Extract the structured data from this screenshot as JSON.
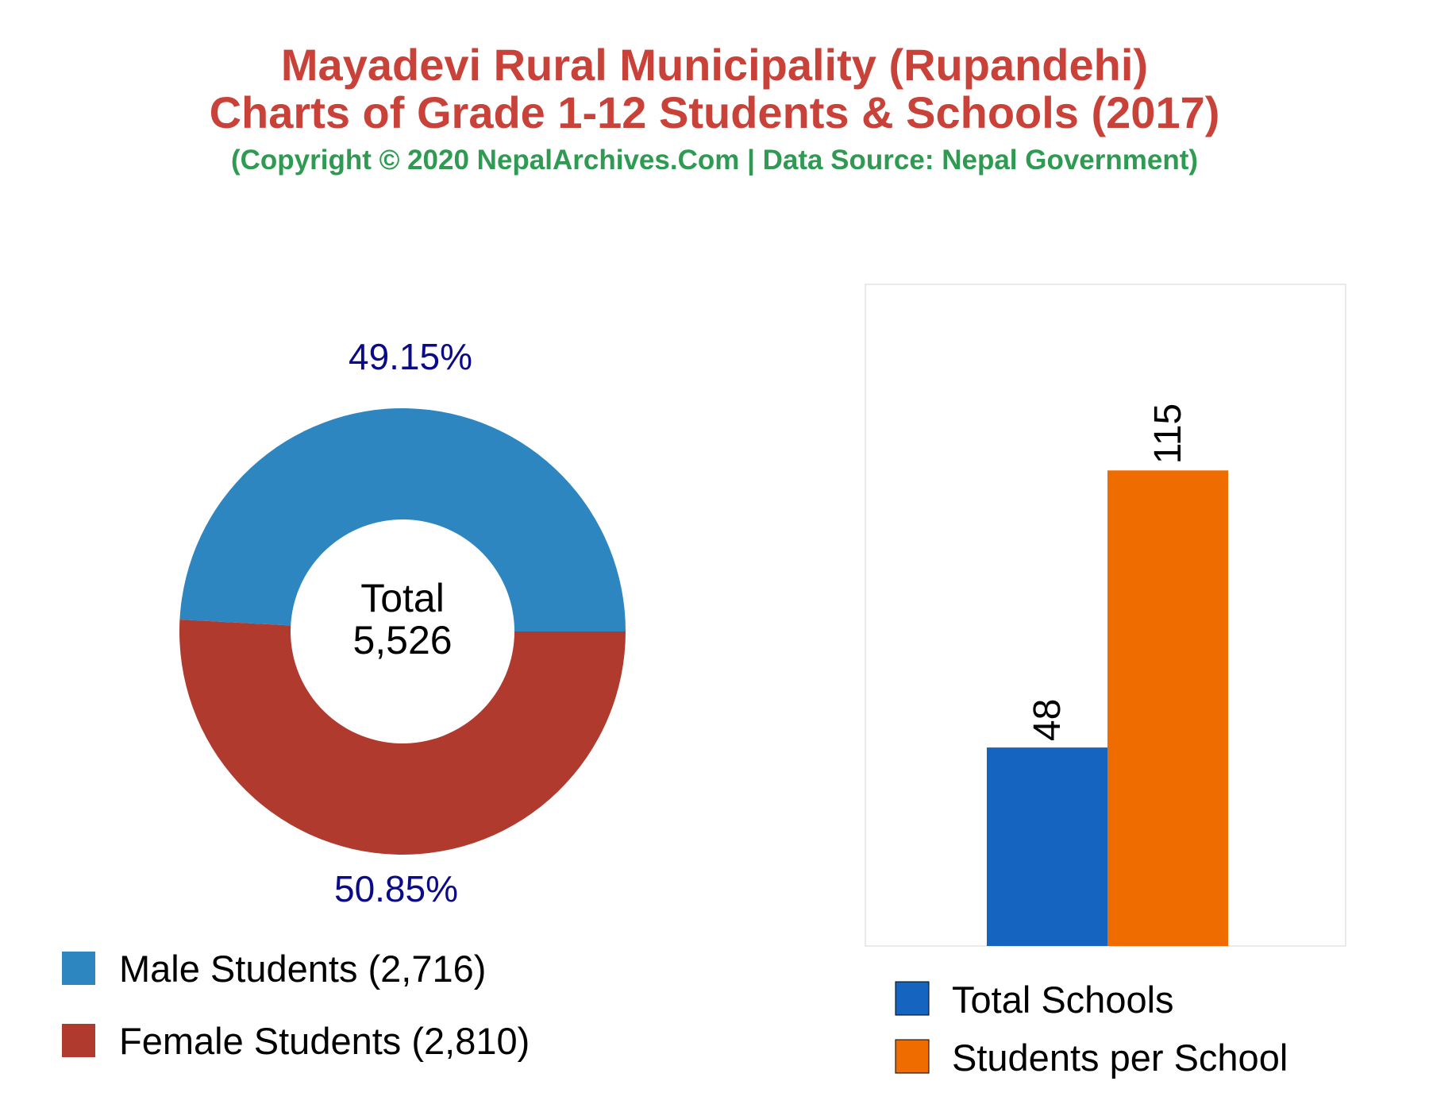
{
  "header": {
    "title_line1": "Mayadevi Rural Municipality (Rupandehi)",
    "title_line2": "Charts of Grade 1-12 Students & Schools (2017)",
    "subtitle": "(Copyright © 2020 NepalArchives.Com | Data Source: Nepal Government)"
  },
  "chart_data": [
    {
      "type": "pie",
      "center_label": "Total",
      "center_value": "5,526",
      "slices": [
        {
          "name": "Male Students",
          "value": 2716,
          "percent_label": "49.15%",
          "legend_label": "Male Students (2,716)",
          "color": "#2e86c1"
        },
        {
          "name": "Female Students",
          "value": 2810,
          "percent_label": "50.85%",
          "legend_label": "Female Students (2,810)",
          "color": "#b03a2e"
        }
      ],
      "label_color": "#0b0b8a",
      "legend_placement": "bottom-left"
    },
    {
      "type": "bar",
      "categories": [
        "Total Schools",
        "Students per School"
      ],
      "values": [
        48,
        115
      ],
      "value_labels": [
        "48",
        "115"
      ],
      "colors": [
        "#1565c0",
        "#ef6c00"
      ],
      "ylim": [
        0,
        160
      ],
      "grid": false,
      "legend_placement": "bottom"
    }
  ]
}
